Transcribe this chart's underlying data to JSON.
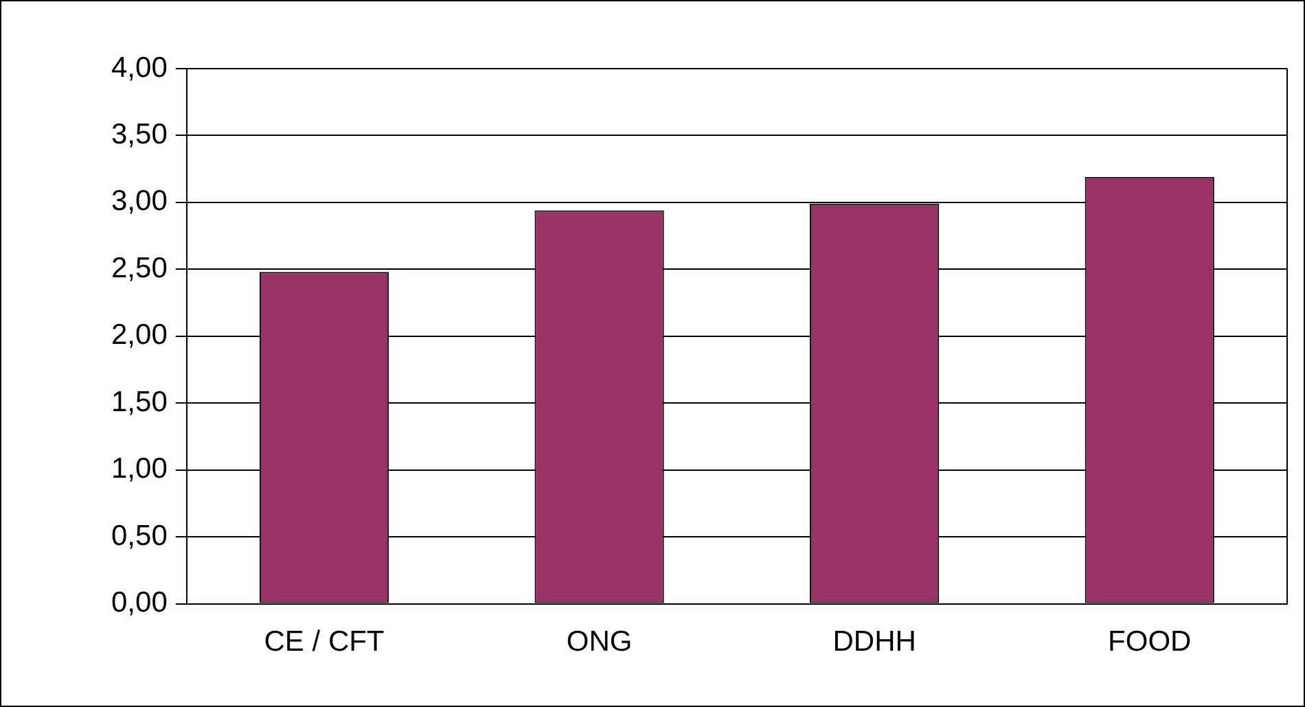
{
  "chart_data": {
    "type": "bar",
    "categories": [
      "CE / CFT",
      "ONG",
      "DDHH",
      "FOOD"
    ],
    "values": [
      2.48,
      2.94,
      2.99,
      3.19
    ],
    "color": "#993366",
    "ylim": [
      0,
      4
    ],
    "yticks": [
      {
        "value": 0,
        "label": "0,00"
      },
      {
        "value": 0.5,
        "label": "0,50"
      },
      {
        "value": 1,
        "label": "1,00"
      },
      {
        "value": 1.5,
        "label": "1,50"
      },
      {
        "value": 2,
        "label": "2,00"
      },
      {
        "value": 2.5,
        "label": "2,50"
      },
      {
        "value": 3,
        "label": "3,00"
      },
      {
        "value": 3.5,
        "label": "3,50"
      },
      {
        "value": 4,
        "label": "4,00"
      }
    ],
    "grid": "y",
    "legend": false
  }
}
